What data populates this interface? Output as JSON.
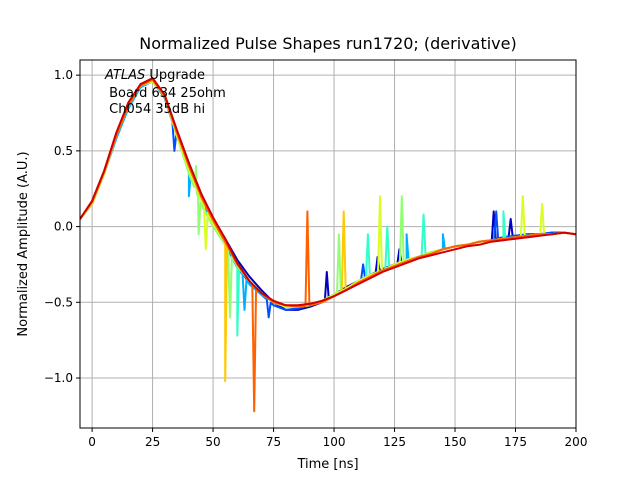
{
  "chart_data": {
    "type": "line",
    "title": "Normalized Pulse Shapes run1720; (derivative)",
    "xlabel": "Time [ns]",
    "ylabel": "Normalized Amplitude (A.U.)",
    "xlim": [
      -5,
      200
    ],
    "ylim": [
      -1.33,
      1.1
    ],
    "xticks": [
      0,
      25,
      50,
      75,
      100,
      125,
      150,
      175,
      200
    ],
    "yticks": [
      -1.0,
      -0.5,
      0.0,
      0.5,
      1.0
    ],
    "xtick_labels": [
      "0",
      "25",
      "50",
      "75",
      "100",
      "125",
      "150",
      "175",
      "200"
    ],
    "ytick_labels": [
      "−1.0",
      "−0.5",
      "0.0",
      "0.5",
      "1.0"
    ],
    "grid": true,
    "annotation": {
      "italic": "ATLAS",
      "rest": " Upgrade",
      "line2": " Board 634 25ohm",
      "line3": " Ch054 35dB hi"
    },
    "x": [
      -5,
      0,
      5,
      10,
      15,
      20,
      25,
      30,
      35,
      40,
      45,
      50,
      55,
      60,
      65,
      70,
      75,
      80,
      85,
      90,
      95,
      100,
      105,
      110,
      115,
      120,
      125,
      130,
      135,
      140,
      145,
      150,
      155,
      160,
      165,
      170,
      175,
      180,
      185,
      190,
      195,
      200
    ],
    "series": [
      {
        "color": "#0000c0",
        "values": [
          0.05,
          0.15,
          0.35,
          0.6,
          0.8,
          0.92,
          0.97,
          0.86,
          0.62,
          0.42,
          0.22,
          0.05,
          -0.08,
          -0.22,
          -0.33,
          -0.42,
          -0.5,
          -0.55,
          -0.55,
          -0.53,
          -0.5,
          -0.45,
          -0.4,
          -0.36,
          -0.32,
          -0.28,
          -0.25,
          -0.22,
          -0.2,
          -0.17,
          -0.15,
          -0.13,
          -0.12,
          -0.1,
          -0.09,
          -0.07,
          -0.06,
          -0.05,
          -0.05,
          -0.04,
          -0.04,
          -0.05
        ],
        "spikes": [
          [
            97,
            -0.3
          ],
          [
            118,
            -0.2
          ],
          [
            127,
            -0.15
          ],
          [
            166,
            0.1
          ],
          [
            173,
            0.05
          ]
        ]
      },
      {
        "color": "#0050ff",
        "values": [
          0.05,
          0.16,
          0.36,
          0.6,
          0.8,
          0.93,
          0.96,
          0.85,
          0.6,
          0.4,
          0.2,
          0.03,
          -0.1,
          -0.25,
          -0.38,
          -0.45,
          -0.52,
          -0.55,
          -0.54,
          -0.52,
          -0.49,
          -0.45,
          -0.41,
          -0.36,
          -0.32,
          -0.28,
          -0.25,
          -0.22,
          -0.2,
          -0.17,
          -0.15,
          -0.13,
          -0.12,
          -0.1,
          -0.09,
          -0.07,
          -0.06,
          -0.05,
          -0.05,
          -0.04,
          -0.04,
          -0.05
        ],
        "spikes": [
          [
            34,
            0.5
          ],
          [
            73,
            -0.6
          ],
          [
            112,
            -0.25
          ],
          [
            167,
            0.1
          ]
        ]
      },
      {
        "color": "#00b0ff",
        "values": [
          0.05,
          0.15,
          0.35,
          0.58,
          0.78,
          0.92,
          0.96,
          0.85,
          0.6,
          0.38,
          0.18,
          0.02,
          -0.12,
          -0.27,
          -0.38,
          -0.45,
          -0.5,
          -0.53,
          -0.53,
          -0.52,
          -0.49,
          -0.46,
          -0.41,
          -0.37,
          -0.33,
          -0.29,
          -0.26,
          -0.23,
          -0.2,
          -0.18,
          -0.15,
          -0.13,
          -0.12,
          -0.1,
          -0.09,
          -0.08,
          -0.07,
          -0.06,
          -0.05,
          -0.05,
          -0.04,
          -0.05
        ],
        "spikes": [
          [
            40,
            0.2
          ],
          [
            63,
            -0.55
          ],
          [
            130,
            -0.05
          ],
          [
            145,
            -0.05
          ]
        ]
      },
      {
        "color": "#30ffc8",
        "values": [
          0.05,
          0.16,
          0.36,
          0.6,
          0.8,
          0.94,
          0.97,
          0.86,
          0.62,
          0.4,
          0.2,
          0.04,
          -0.1,
          -0.24,
          -0.36,
          -0.44,
          -0.5,
          -0.53,
          -0.53,
          -0.52,
          -0.49,
          -0.45,
          -0.41,
          -0.36,
          -0.32,
          -0.29,
          -0.25,
          -0.22,
          -0.2,
          -0.17,
          -0.15,
          -0.13,
          -0.12,
          -0.1,
          -0.09,
          -0.08,
          -0.07,
          -0.06,
          -0.05,
          -0.05,
          -0.04,
          -0.05
        ],
        "spikes": [
          [
            60,
            -0.72
          ],
          [
            114,
            -0.05
          ],
          [
            122,
            0.0
          ],
          [
            137,
            0.08
          ],
          [
            170,
            0.1
          ]
        ]
      },
      {
        "color": "#90ff70",
        "values": [
          0.05,
          0.15,
          0.35,
          0.6,
          0.8,
          0.93,
          0.96,
          0.86,
          0.6,
          0.35,
          0.15,
          0.0,
          -0.12,
          -0.26,
          -0.36,
          -0.44,
          -0.5,
          -0.53,
          -0.53,
          -0.52,
          -0.49,
          -0.45,
          -0.41,
          -0.36,
          -0.32,
          -0.29,
          -0.25,
          -0.22,
          -0.2,
          -0.17,
          -0.15,
          -0.13,
          -0.12,
          -0.1,
          -0.09,
          -0.08,
          -0.07,
          -0.06,
          -0.05,
          -0.05,
          -0.04,
          -0.05
        ],
        "spikes": [
          [
            43,
            0.4
          ],
          [
            44,
            -0.05
          ],
          [
            57,
            -0.6
          ],
          [
            102,
            -0.05
          ],
          [
            128,
            0.2
          ]
        ]
      },
      {
        "color": "#d8ff20",
        "values": [
          0.05,
          0.15,
          0.35,
          0.6,
          0.8,
          0.93,
          0.96,
          0.86,
          0.6,
          0.38,
          0.18,
          0.02,
          -0.1,
          -0.25,
          -0.36,
          -0.44,
          -0.5,
          -0.53,
          -0.53,
          -0.52,
          -0.49,
          -0.45,
          -0.41,
          -0.36,
          -0.32,
          -0.29,
          -0.25,
          -0.22,
          -0.2,
          -0.17,
          -0.15,
          -0.13,
          -0.12,
          -0.1,
          -0.09,
          -0.08,
          -0.07,
          -0.06,
          -0.05,
          -0.05,
          -0.04,
          -0.05
        ],
        "spikes": [
          [
            47,
            -0.15
          ],
          [
            119,
            0.2
          ],
          [
            178,
            0.2
          ],
          [
            186,
            0.15
          ]
        ]
      },
      {
        "color": "#ffc800",
        "values": [
          0.05,
          0.16,
          0.36,
          0.6,
          0.8,
          0.94,
          0.98,
          0.87,
          0.62,
          0.4,
          0.2,
          0.04,
          -0.1,
          -0.25,
          -0.36,
          -0.44,
          -0.5,
          -0.52,
          -0.53,
          -0.52,
          -0.5,
          -0.46,
          -0.42,
          -0.37,
          -0.33,
          -0.29,
          -0.26,
          -0.23,
          -0.2,
          -0.18,
          -0.15,
          -0.13,
          -0.12,
          -0.1,
          -0.09,
          -0.08,
          -0.07,
          -0.06,
          -0.05,
          -0.05,
          -0.04,
          -0.05
        ],
        "spikes": [
          [
            55,
            -1.02
          ],
          [
            104,
            0.1
          ]
        ]
      },
      {
        "color": "#ff6000",
        "values": [
          0.05,
          0.16,
          0.36,
          0.6,
          0.8,
          0.93,
          0.97,
          0.86,
          0.62,
          0.4,
          0.2,
          0.04,
          -0.1,
          -0.25,
          -0.36,
          -0.44,
          -0.5,
          -0.52,
          -0.53,
          -0.52,
          -0.5,
          -0.46,
          -0.42,
          -0.37,
          -0.33,
          -0.29,
          -0.26,
          -0.23,
          -0.2,
          -0.18,
          -0.15,
          -0.13,
          -0.12,
          -0.1,
          -0.09,
          -0.08,
          -0.07,
          -0.06,
          -0.05,
          -0.05,
          -0.04,
          -0.05
        ],
        "spikes": [
          [
            67,
            -1.22
          ],
          [
            89,
            0.1
          ]
        ]
      },
      {
        "color": "#d00000",
        "values": [
          0.05,
          0.17,
          0.37,
          0.62,
          0.82,
          0.94,
          0.98,
          0.87,
          0.64,
          0.42,
          0.22,
          0.06,
          -0.08,
          -0.24,
          -0.36,
          -0.44,
          -0.49,
          -0.52,
          -0.52,
          -0.51,
          -0.49,
          -0.46,
          -0.42,
          -0.38,
          -0.34,
          -0.3,
          -0.27,
          -0.24,
          -0.21,
          -0.19,
          -0.17,
          -0.15,
          -0.13,
          -0.12,
          -0.1,
          -0.09,
          -0.08,
          -0.07,
          -0.06,
          -0.05,
          -0.04,
          -0.05
        ],
        "spikes": []
      }
    ]
  }
}
